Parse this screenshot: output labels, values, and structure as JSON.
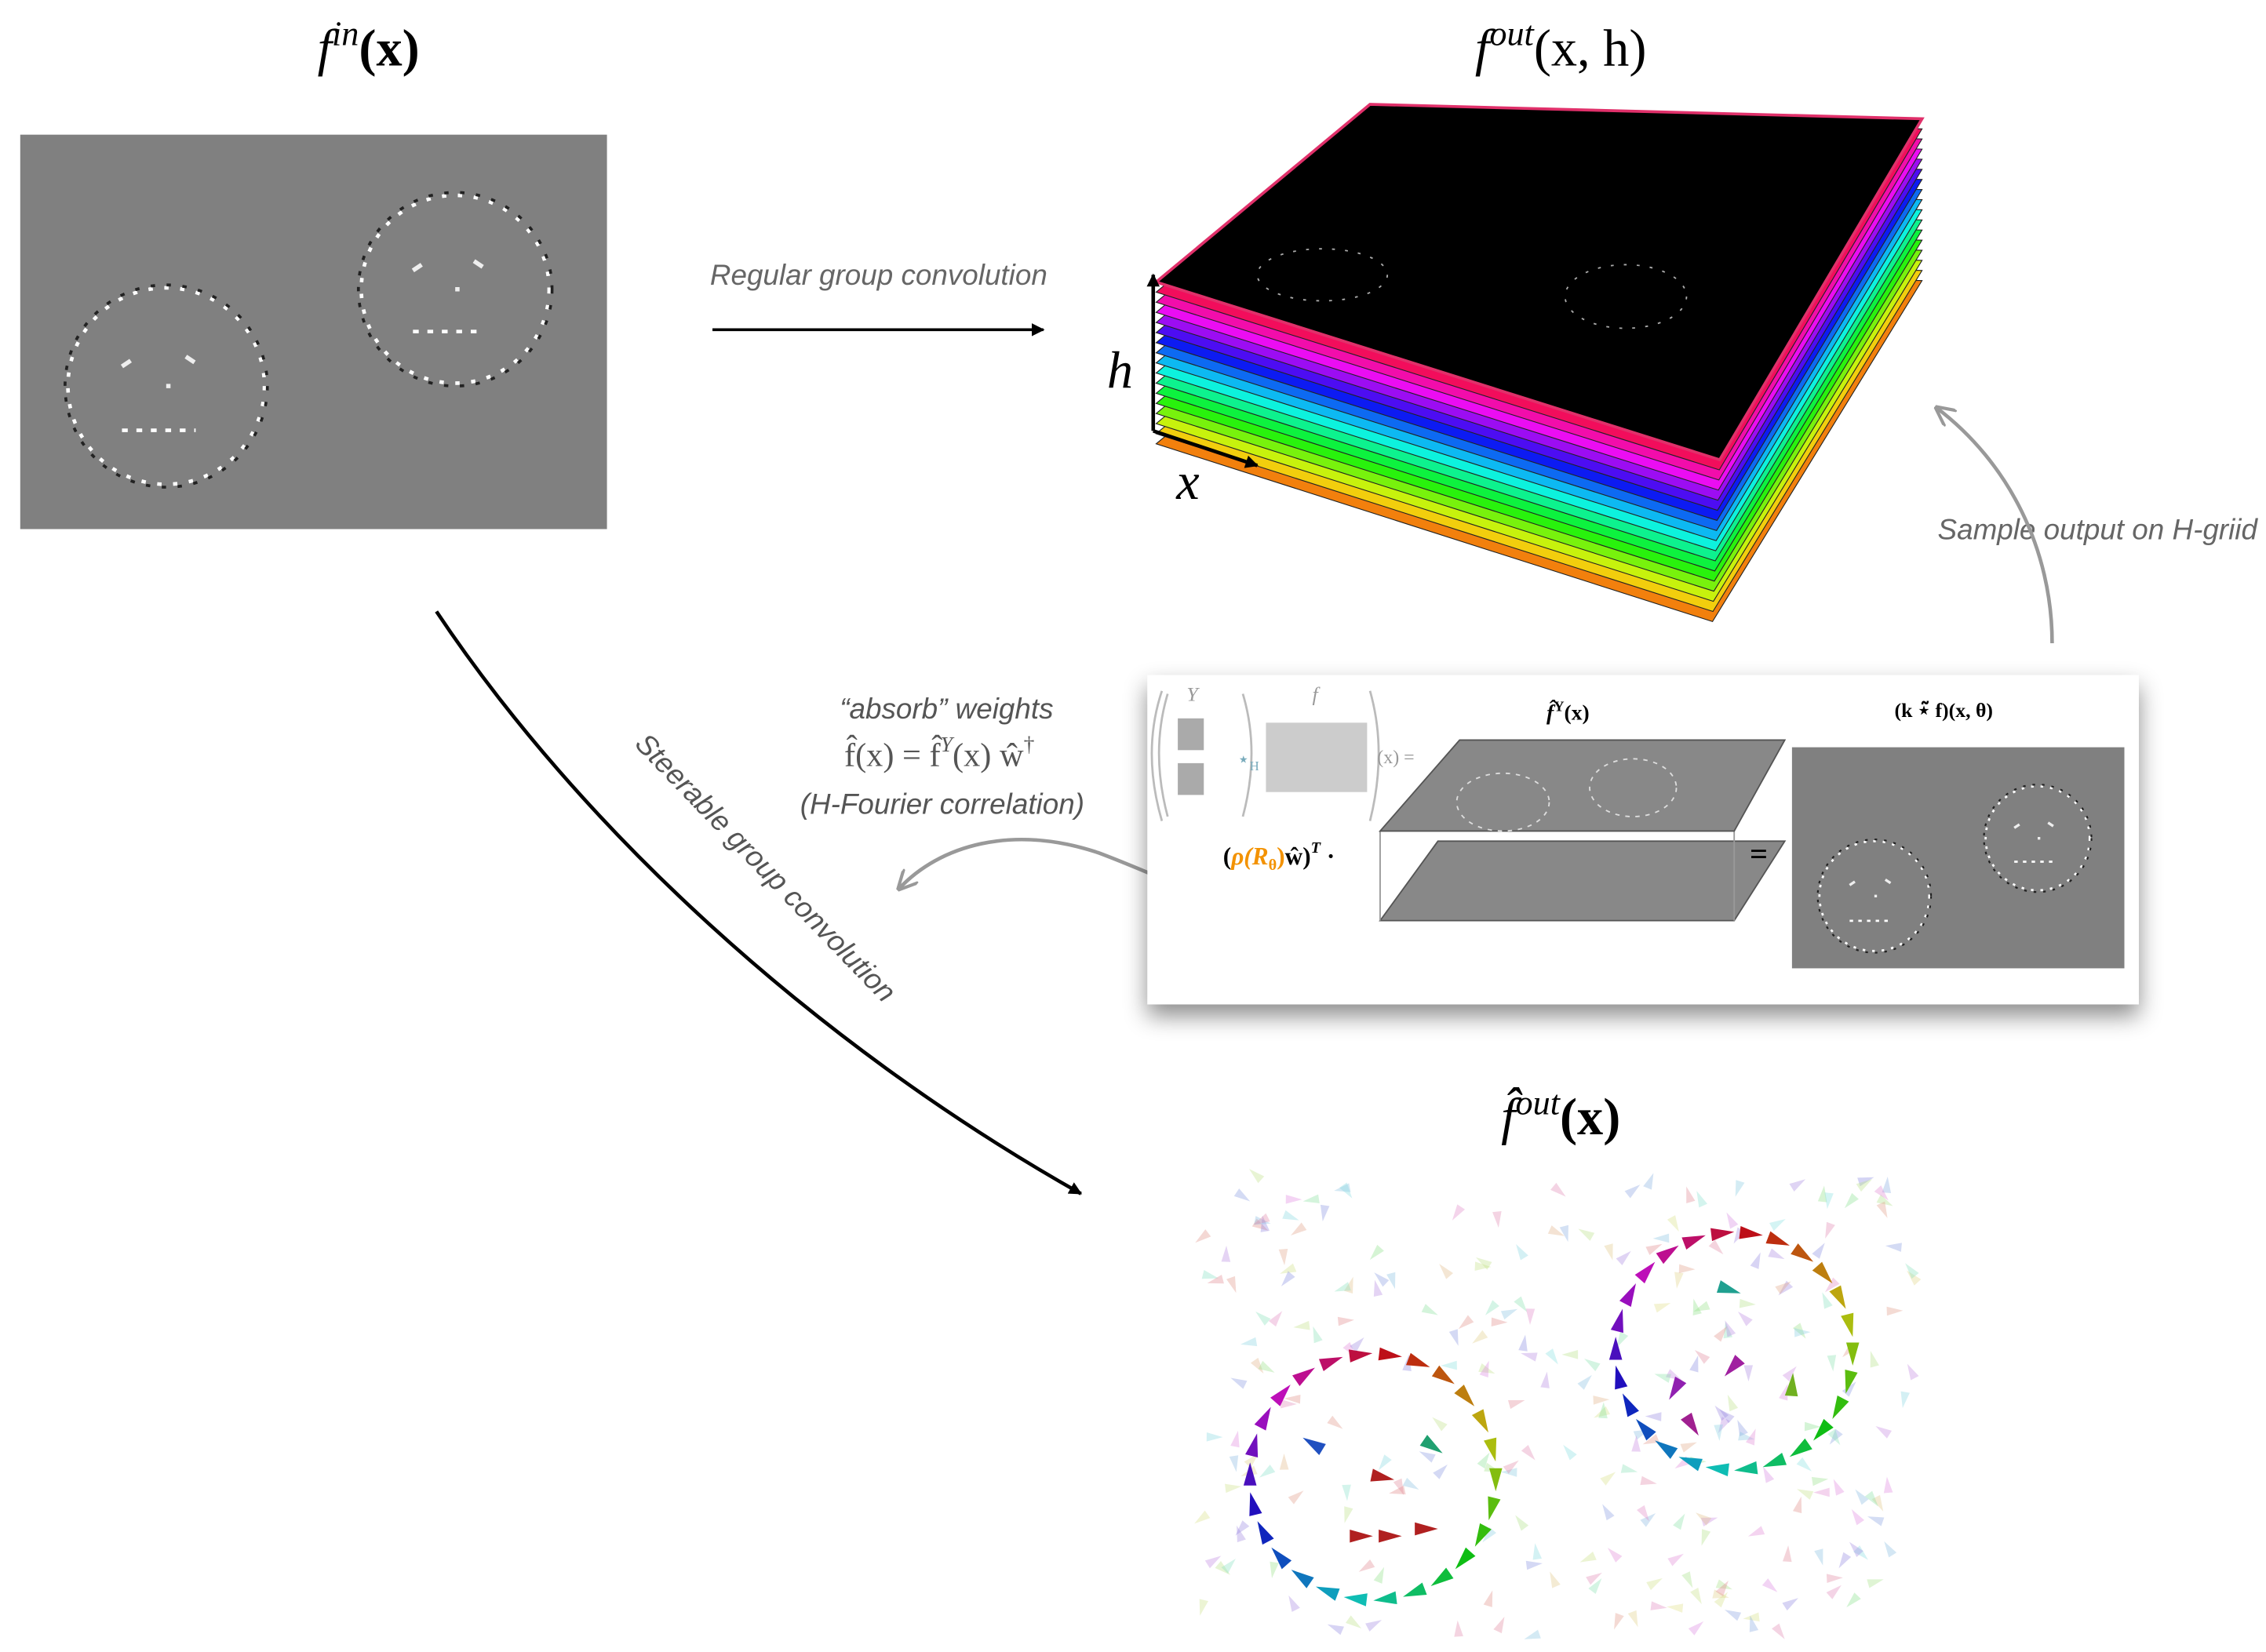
{
  "titles": {
    "input": {
      "base": "f",
      "sup": "in",
      "args": "(x)"
    },
    "output": {
      "base": "f",
      "sup": "out",
      "args": "(x, h)"
    },
    "steerable_output": {
      "base": "f̂",
      "sup": "out",
      "args": "(x)"
    }
  },
  "axes": {
    "h": "h",
    "x": "x"
  },
  "arrows": {
    "regular": "Regular group convolution",
    "steerable": "Steerable group convolution",
    "sample": "Sample output on H-griid"
  },
  "absorb": {
    "heading": "“absorb” weights",
    "formula": {
      "lhs": "f̂(x) = f̂",
      "sup1": "Y",
      "mid": "(x) ŵ",
      "sup2": "†"
    },
    "note": "(H-Fourier correlation)"
  },
  "inset": {
    "y_label": "Y",
    "f_label": "f",
    "conv_sym": "⋆",
    "conv_sub": "H",
    "eq1": "(x) =",
    "feature_label": {
      "base": "f̂",
      "sup": "Y",
      "args": "(x)"
    },
    "result_label": "(k ⋆̃ f)(x, θ)",
    "weights": {
      "open": "(",
      "rho": "ρ(R",
      "sub": "θ",
      "close_rho": ")",
      "w": "ŵ)",
      "sup": "T",
      "dot": " ·"
    },
    "eq2": "="
  }
}
